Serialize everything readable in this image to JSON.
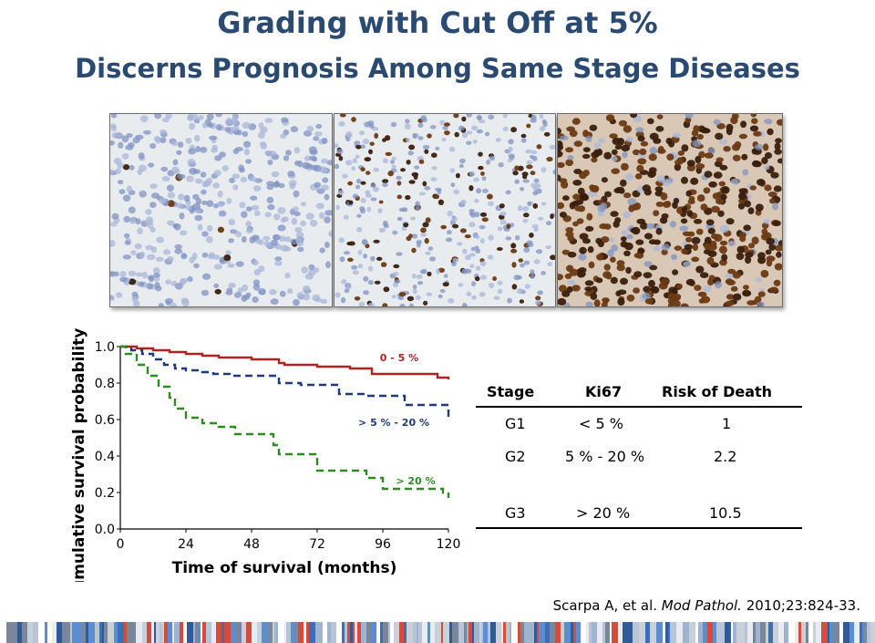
{
  "title_line1": "Grading with Cut Off at 5%",
  "title_line2": "Discerns Prognosis Among Same Stage Diseases",
  "micrographs": [
    {
      "name": "low-ki67-micrograph",
      "stain_fraction": 0.02
    },
    {
      "name": "mid-ki67-micrograph",
      "stain_fraction": 0.3
    },
    {
      "name": "high-ki67-micrograph",
      "stain_fraction": 0.85
    }
  ],
  "chart_data": {
    "type": "line",
    "title": "",
    "xlabel": "Time of survival (months)",
    "ylabel": "Cumulative survival probability",
    "xlim": [
      0,
      120
    ],
    "ylim": [
      0.0,
      1.0
    ],
    "xticks": [
      0,
      24,
      48,
      72,
      96,
      120
    ],
    "xtick_labels": [
      "0",
      "24",
      "48",
      "72",
      "96",
      "120"
    ],
    "yticks": [
      0.0,
      0.2,
      0.4,
      0.6,
      0.8,
      1.0
    ],
    "ytick_labels": [
      "0.0",
      "0.2",
      "0.4",
      "0.6",
      "0.8",
      "1.0"
    ],
    "grid": false,
    "series": [
      {
        "name": "0 - 5 %",
        "color": "#b22222",
        "dash": "solid",
        "x": [
          0,
          6,
          12,
          18,
          24,
          30,
          36,
          48,
          58,
          60,
          72,
          84,
          92,
          108,
          116,
          120
        ],
        "y": [
          1.0,
          0.99,
          0.98,
          0.97,
          0.96,
          0.95,
          0.94,
          0.93,
          0.91,
          0.9,
          0.89,
          0.88,
          0.85,
          0.85,
          0.83,
          0.82
        ]
      },
      {
        "name": "> 5 % - 20 %",
        "color": "#1f3a7a",
        "dash": "dashed",
        "x": [
          0,
          4,
          8,
          12,
          16,
          20,
          24,
          30,
          34,
          40,
          48,
          52,
          58,
          66,
          70,
          80,
          86,
          90,
          104,
          108,
          118,
          120
        ],
        "y": [
          1.0,
          0.98,
          0.96,
          0.93,
          0.9,
          0.88,
          0.87,
          0.86,
          0.85,
          0.84,
          0.84,
          0.84,
          0.8,
          0.79,
          0.79,
          0.74,
          0.74,
          0.73,
          0.68,
          0.68,
          0.68,
          0.61
        ]
      },
      {
        "name": "> 20 %",
        "color": "#2e8b22",
        "dash": "dashed",
        "x": [
          0,
          2,
          6,
          10,
          14,
          18,
          20,
          24,
          30,
          36,
          42,
          54,
          56,
          58,
          70,
          72,
          84,
          90,
          96,
          108,
          114,
          118,
          120
        ],
        "y": [
          1.0,
          0.96,
          0.9,
          0.84,
          0.78,
          0.72,
          0.66,
          0.61,
          0.58,
          0.56,
          0.52,
          0.52,
          0.46,
          0.41,
          0.41,
          0.32,
          0.32,
          0.28,
          0.22,
          0.22,
          0.22,
          0.2,
          0.17
        ]
      }
    ],
    "annotations": [
      {
        "text": "0 - 5 %",
        "color": "#b22222"
      },
      {
        "text": "> 5 % - 20 %",
        "color": "#1f3a7a"
      },
      {
        "text": "> 20 %",
        "color": "#2e8b22"
      }
    ]
  },
  "table": {
    "headers": [
      "Stage",
      "Ki67",
      "Risk of Death"
    ],
    "rows": [
      [
        "G1",
        "< 5 %",
        "1"
      ],
      [
        "G2",
        "5 % - 20 %",
        "2.2"
      ],
      [
        "G3",
        "> 20 %",
        "10.5"
      ]
    ]
  },
  "citation": {
    "prefix": "Scarpa A, et al. ",
    "journal": "Mod Pathol.",
    "suffix": " 2010;23:824-33."
  }
}
